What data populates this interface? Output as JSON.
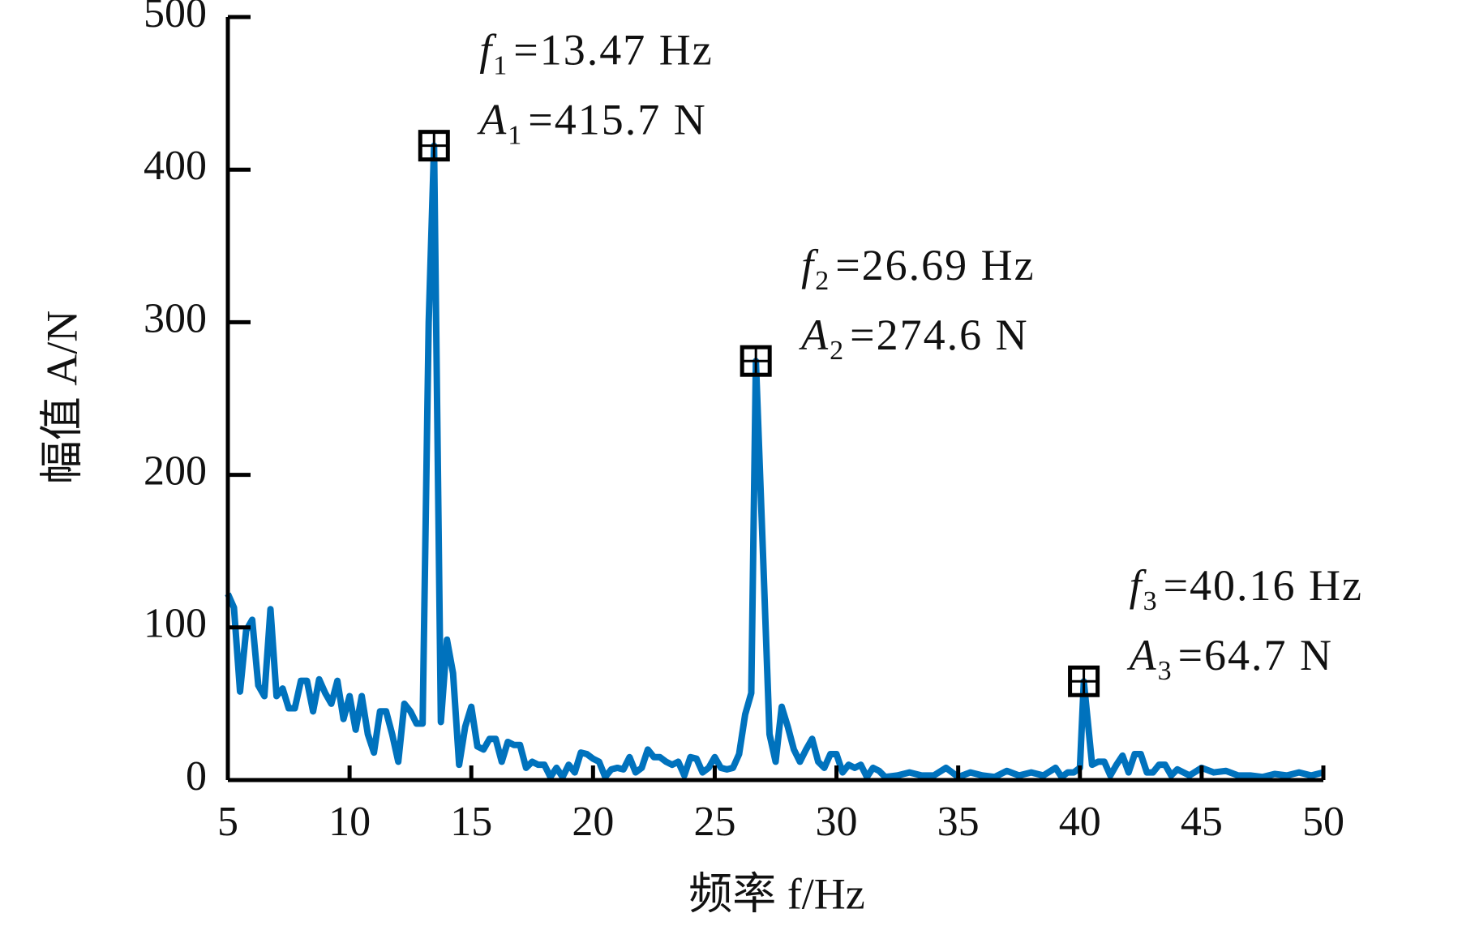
{
  "chart_data": {
    "type": "line",
    "x_label": "频率 f/Hz",
    "y_label": "幅值 A/N",
    "xlim": [
      5,
      50
    ],
    "xticks": [
      5,
      10,
      15,
      20,
      25,
      30,
      35,
      40,
      45,
      50
    ],
    "ylim": [
      0,
      500
    ],
    "yticks": [
      0,
      100,
      200,
      300,
      400,
      500
    ],
    "series": [
      {
        "color": "#0072BD",
        "x": [
          5,
          5.25,
          5.5,
          5.75,
          6,
          6.25,
          6.5,
          6.75,
          7,
          7.25,
          7.5,
          7.75,
          8,
          8.25,
          8.5,
          8.75,
          9,
          9.25,
          9.5,
          9.75,
          10,
          10.25,
          10.5,
          10.75,
          11,
          11.25,
          11.5,
          11.75,
          12,
          12.25,
          12.5,
          12.75,
          13,
          13.25,
          13.47,
          13.75,
          14,
          14.25,
          14.5,
          14.75,
          15,
          15.25,
          15.5,
          15.75,
          16,
          16.25,
          16.5,
          16.75,
          17,
          17.25,
          17.5,
          17.75,
          18,
          18.25,
          18.5,
          18.75,
          19,
          19.25,
          19.5,
          19.75,
          20,
          20.25,
          20.5,
          20.75,
          21,
          21.25,
          21.5,
          21.75,
          22,
          22.25,
          22.5,
          22.75,
          23,
          23.25,
          23.5,
          23.75,
          24,
          24.25,
          24.5,
          24.75,
          25,
          25.25,
          25.5,
          25.75,
          26,
          26.25,
          26.5,
          26.69,
          27,
          27.25,
          27.5,
          27.75,
          28,
          28.25,
          28.5,
          28.75,
          29,
          29.25,
          29.5,
          29.75,
          30,
          30.25,
          30.5,
          30.75,
          31,
          31.25,
          31.5,
          31.75,
          32,
          32.5,
          33,
          33.5,
          34,
          34.5,
          35,
          35.5,
          36,
          36.5,
          37,
          37.5,
          38,
          38.5,
          39,
          39.25,
          39.5,
          39.75,
          40,
          40.16,
          40.5,
          40.75,
          41,
          41.25,
          41.5,
          41.75,
          42,
          42.25,
          42.5,
          42.75,
          43,
          43.25,
          43.5,
          43.75,
          44,
          44.5,
          45,
          45.5,
          46,
          46.5,
          47,
          47.5,
          48,
          48.5,
          49,
          49.5,
          50
        ],
        "values": [
          122,
          113,
          58,
          98,
          105,
          62,
          55,
          112,
          55,
          60,
          47,
          47,
          65,
          65,
          45,
          66,
          57,
          50,
          65,
          40,
          55,
          33,
          55,
          30,
          18,
          45,
          45,
          30,
          12,
          50,
          45,
          37,
          37,
          300,
          415.7,
          38,
          92,
          70,
          10,
          35,
          48,
          22,
          20,
          27,
          27,
          12,
          25,
          23,
          23,
          8,
          12,
          10,
          10,
          2,
          8,
          2,
          10,
          5,
          18,
          17,
          14,
          12,
          2,
          7,
          8,
          7,
          15,
          5,
          8,
          20,
          15,
          15,
          12,
          10,
          12,
          3,
          15,
          14,
          5,
          8,
          15,
          8,
          7,
          8,
          17,
          43,
          57,
          274.6,
          140,
          30,
          12,
          48,
          35,
          20,
          12,
          20,
          27,
          12,
          8,
          17,
          17,
          5,
          10,
          8,
          10,
          2,
          8,
          6,
          2,
          3,
          5,
          3,
          3,
          8,
          2,
          5,
          3,
          2,
          6,
          3,
          5,
          3,
          8,
          2,
          5,
          5,
          8,
          64.7,
          10,
          12,
          12,
          3,
          10,
          16,
          5,
          17,
          17,
          5,
          5,
          10,
          10,
          3,
          7,
          3,
          8,
          5,
          6,
          3,
          3,
          2,
          4,
          3,
          5,
          3,
          5
        ]
      }
    ],
    "annotations": [
      {
        "x": 13.47,
        "y": 415.7,
        "f_symbol": "f",
        "f_sub": "1",
        "f_text": "=13.47 Hz",
        "a_symbol": "A",
        "a_sub": "1",
        "a_text": "=415.7 N"
      },
      {
        "x": 26.69,
        "y": 274.6,
        "f_symbol": "f",
        "f_sub": "2",
        "f_text": "=26.69 Hz",
        "a_symbol": "A",
        "a_sub": "2",
        "a_text": "=274.6 N"
      },
      {
        "x": 40.16,
        "y": 64.7,
        "f_symbol": "f",
        "f_sub": "3",
        "f_text": "=40.16 Hz",
        "a_symbol": "A",
        "a_sub": "3",
        "a_text": "=64.7 N"
      }
    ]
  }
}
